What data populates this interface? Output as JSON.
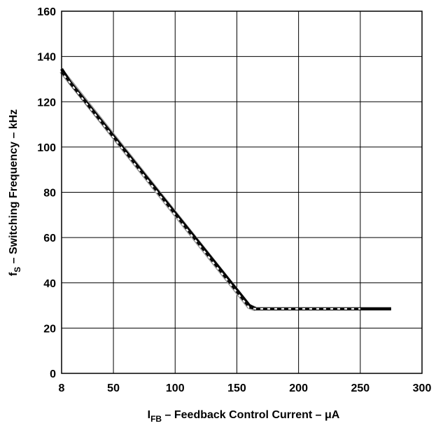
{
  "chart_data": {
    "type": "line",
    "xlabel": {
      "main": "I",
      "sub": "FB",
      "rest": " – Feedback Control Current – μA"
    },
    "ylabel": {
      "main": "f",
      "sub": "S",
      "rest": " – Switching Frequency – kHz"
    },
    "xlim": [
      8,
      300
    ],
    "ylim": [
      0,
      160
    ],
    "grid": true,
    "x_ticks": [
      {
        "value": 8,
        "label": "8"
      },
      {
        "value": 50,
        "label": "50"
      },
      {
        "value": 100,
        "label": "100"
      },
      {
        "value": 150,
        "label": "150"
      },
      {
        "value": 200,
        "label": "200"
      },
      {
        "value": 250,
        "label": "250"
      },
      {
        "value": 300,
        "label": "300"
      }
    ],
    "y_ticks": [
      {
        "value": 0,
        "label": "0"
      },
      {
        "value": 20,
        "label": "20"
      },
      {
        "value": 40,
        "label": "40"
      },
      {
        "value": 60,
        "label": "60"
      },
      {
        "value": 80,
        "label": "80"
      },
      {
        "value": 100,
        "label": "100"
      },
      {
        "value": 120,
        "label": "120"
      },
      {
        "value": 140,
        "label": "140"
      },
      {
        "value": 160,
        "label": "160"
      }
    ],
    "series": [
      {
        "style": "gray-wide",
        "color": "#9a9a9a",
        "x": [
          8,
          160,
          165
        ],
        "y": [
          133.5,
          29.5,
          28.5
        ]
      },
      {
        "style": "black-solid",
        "color": "#000000",
        "x": [
          8,
          15,
          160,
          165,
          275
        ],
        "y": [
          134.5,
          128.5,
          30,
          28.5,
          28.5
        ]
      },
      {
        "style": "dashed",
        "color": "#000000",
        "x": [
          8,
          160,
          165,
          250
        ],
        "y": [
          133,
          29,
          28.5,
          28.5
        ]
      }
    ]
  }
}
